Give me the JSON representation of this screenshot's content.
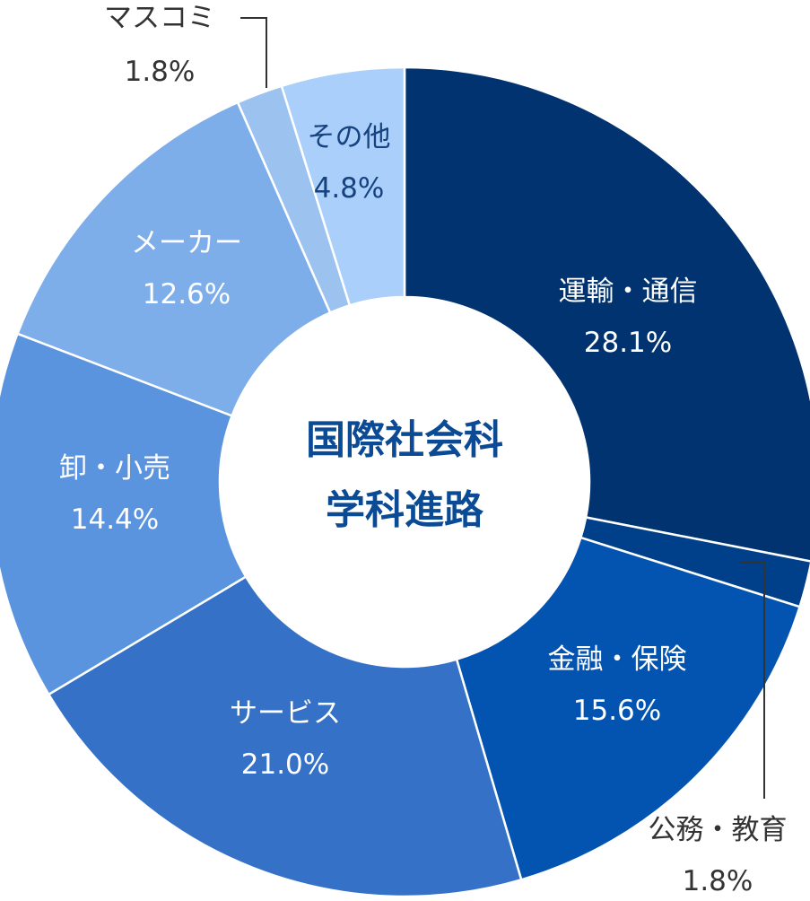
{
  "chart_data": {
    "type": "pie",
    "title": "国際社会科\n学科進路",
    "title_lines": [
      "国際社会科",
      "学科進路"
    ],
    "title_color": "#0b4a95",
    "legend": "none",
    "slices": [
      {
        "label": "運輸・通信",
        "value": 28.1,
        "value_text": "28.1%",
        "color": "#00336f",
        "text_color": "#ffffff"
      },
      {
        "label": "公務・教育",
        "value": 1.8,
        "value_text": "1.8%",
        "color": "#003f89",
        "text_color": "#333333"
      },
      {
        "label": "金融・保険",
        "value": 15.6,
        "value_text": "15.6%",
        "color": "#0353b0",
        "text_color": "#ffffff"
      },
      {
        "label": "サービス",
        "value": 21.0,
        "value_text": "21.0%",
        "color": "#3571c6",
        "text_color": "#ffffff"
      },
      {
        "label": "卸・小売",
        "value": 14.4,
        "value_text": "14.4%",
        "color": "#5a93de",
        "text_color": "#ffffff"
      },
      {
        "label": "メーカー",
        "value": 12.6,
        "value_text": "12.6%",
        "color": "#7eaeea",
        "text_color": "#ffffff"
      },
      {
        "label": "マスコミ",
        "value": 1.8,
        "value_text": "1.8%",
        "color": "#9cc2f0",
        "text_color": "#333333"
      },
      {
        "label": "その他",
        "value": 4.8,
        "value_text": "4.8%",
        "color": "#a9cffa",
        "text_color": "#16427f"
      }
    ]
  }
}
